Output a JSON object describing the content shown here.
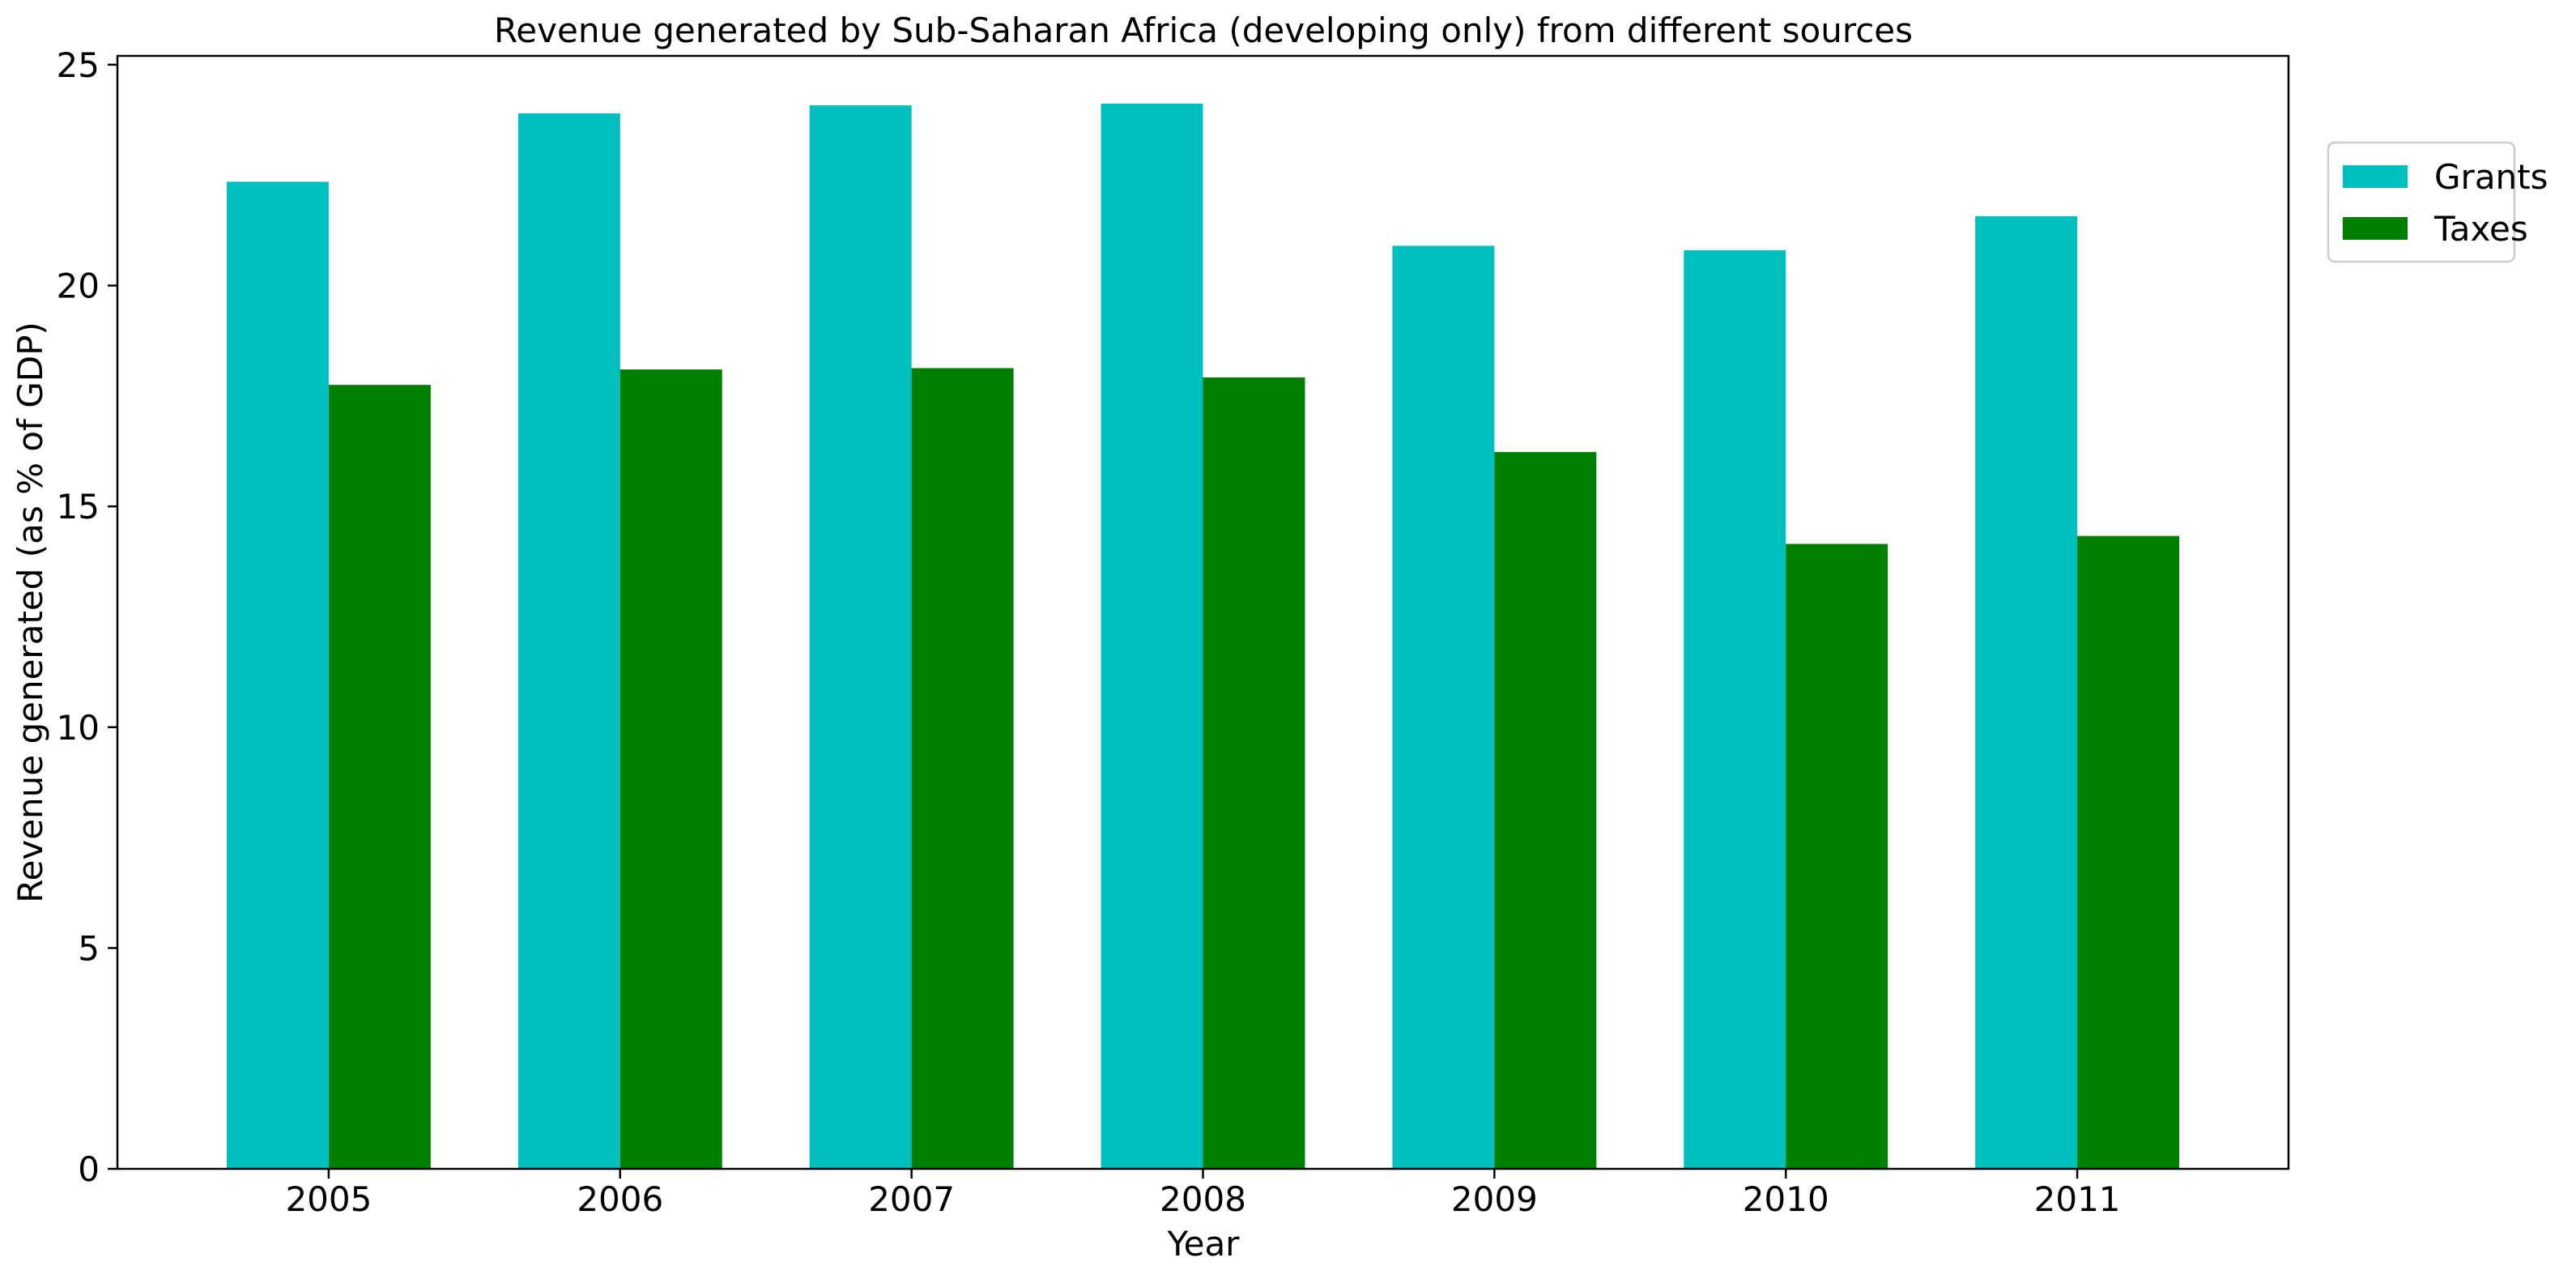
{
  "chart_data": {
    "type": "bar",
    "title": "Revenue generated by Sub-Saharan Africa (developing only) from different sources",
    "xlabel": "Year",
    "ylabel": "Revenue generated (as % of GDP)",
    "categories": [
      "2005",
      "2006",
      "2007",
      "2008",
      "2009",
      "2010",
      "2011"
    ],
    "series": [
      {
        "name": "Grants",
        "color": "#00bfbf",
        "values": [
          22.35,
          23.9,
          24.08,
          24.12,
          20.9,
          20.8,
          21.57
        ]
      },
      {
        "name": "Taxes",
        "color": "#008000",
        "values": [
          17.75,
          18.1,
          18.13,
          17.92,
          16.23,
          14.15,
          14.33
        ]
      }
    ],
    "ylim": [
      0,
      25.2
    ],
    "yticks": [
      0,
      5,
      10,
      15,
      20,
      25
    ],
    "grid": false,
    "legend_position": "upper-right-outside"
  }
}
